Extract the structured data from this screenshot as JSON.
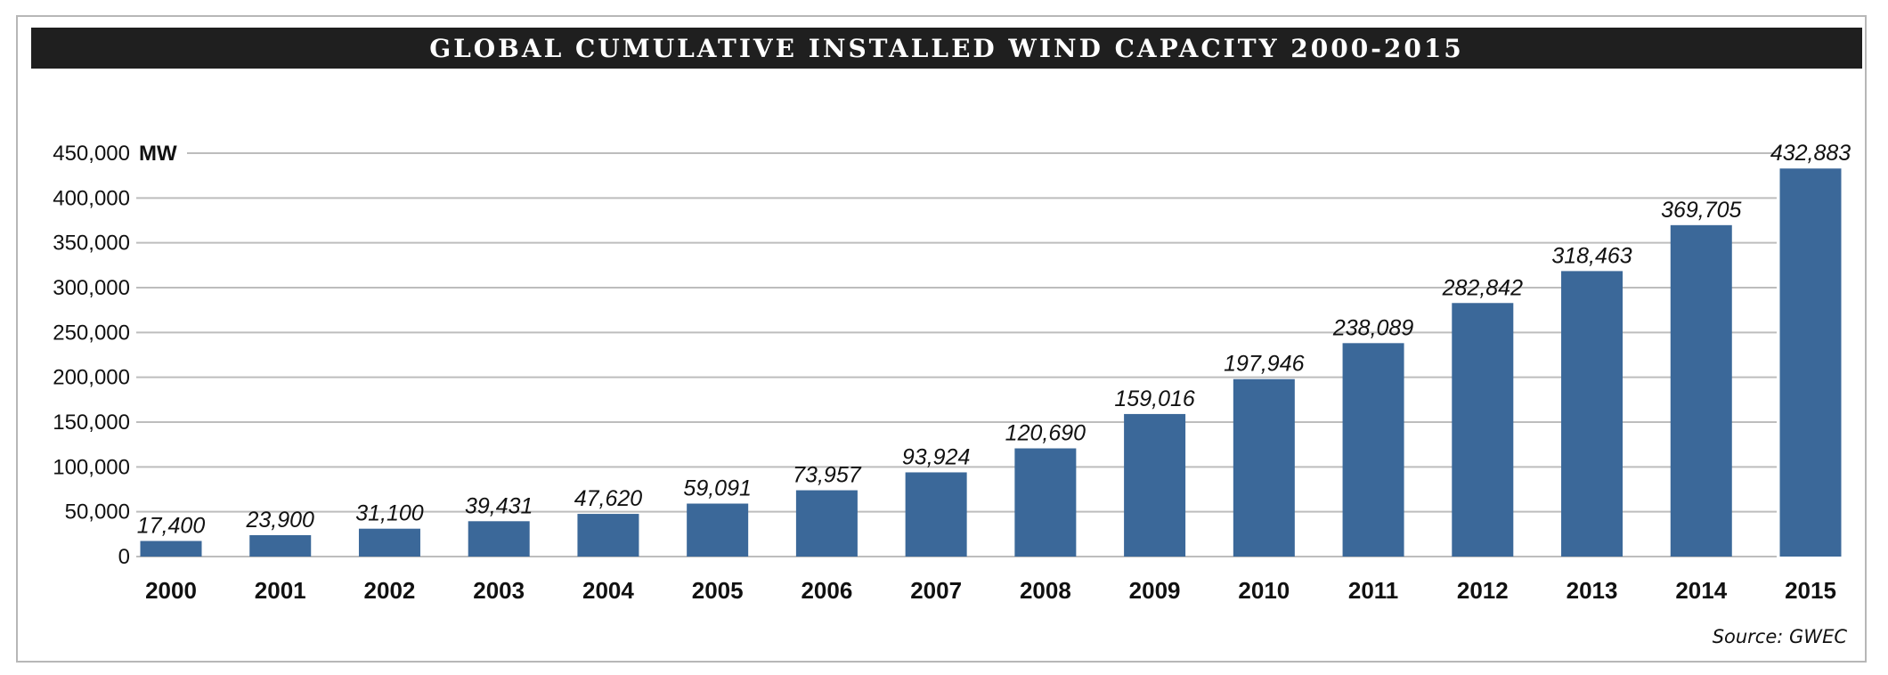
{
  "chart_data": {
    "type": "bar",
    "title": "GLOBAL CUMULATIVE INSTALLED WIND CAPACITY 2000-2015",
    "unit": "MW",
    "source": "Source: GWEC",
    "categories": [
      "2000",
      "2001",
      "2002",
      "2003",
      "2004",
      "2005",
      "2006",
      "2007",
      "2008",
      "2009",
      "2010",
      "2011",
      "2012",
      "2013",
      "2014",
      "2015"
    ],
    "values": [
      17400,
      23900,
      31100,
      39431,
      47620,
      59091,
      73957,
      93924,
      120690,
      159016,
      197946,
      238089,
      282842,
      318463,
      369705,
      432883
    ],
    "value_labels": [
      "17,400",
      "23,900",
      "31,100",
      "39,431",
      "47,620",
      "59,091",
      "73,957",
      "93,924",
      "120,690",
      "159,016",
      "197,946",
      "238,089",
      "282,842",
      "318,463",
      "369,705",
      "432,883"
    ],
    "y_ticks": [
      0,
      50000,
      100000,
      150000,
      200000,
      250000,
      300000,
      350000,
      400000,
      450000
    ],
    "y_tick_labels": [
      "0",
      "50,000",
      "100,000",
      "150,000",
      "200,000",
      "250,000",
      "300,000",
      "350,000",
      "400,000",
      "450,000"
    ],
    "ylim": [
      0,
      450000
    ],
    "grid": true,
    "bar_color": "#3b6899",
    "grid_color": "#bdbdbd"
  }
}
